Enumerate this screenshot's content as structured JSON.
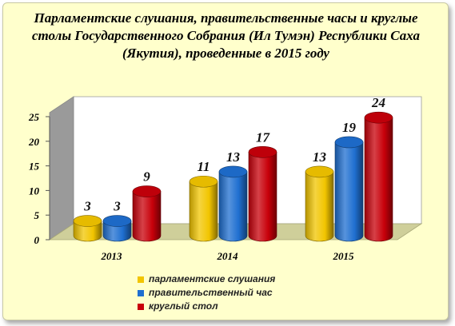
{
  "chart_data": {
    "type": "bar",
    "title": "Парламентские слушания,  правительственные часы  и круглые столы  Государственного Собрания (Ил Тумэн) Республики Саха (Якутия), проведенные в 2015 году",
    "categories": [
      "2013",
      "2014",
      "2015"
    ],
    "series": [
      {
        "name": "парламентские слушания",
        "color": "#f2c500",
        "values": [
          3,
          11,
          13
        ]
      },
      {
        "name": "правительственный час",
        "color": "#1f6fd0",
        "values": [
          3,
          13,
          19
        ]
      },
      {
        "name": "круглый стол",
        "color": "#c8000a",
        "values": [
          9,
          17,
          24
        ]
      }
    ],
    "y_ticks": [
      "0",
      "5",
      "10",
      "15",
      "20",
      "25"
    ],
    "ylim": [
      0,
      25
    ],
    "grid": false,
    "legend_position": "bottom",
    "style": "3d-cylinder",
    "floor_color": "#cfcf9a",
    "wall_color": "#ffffff"
  }
}
